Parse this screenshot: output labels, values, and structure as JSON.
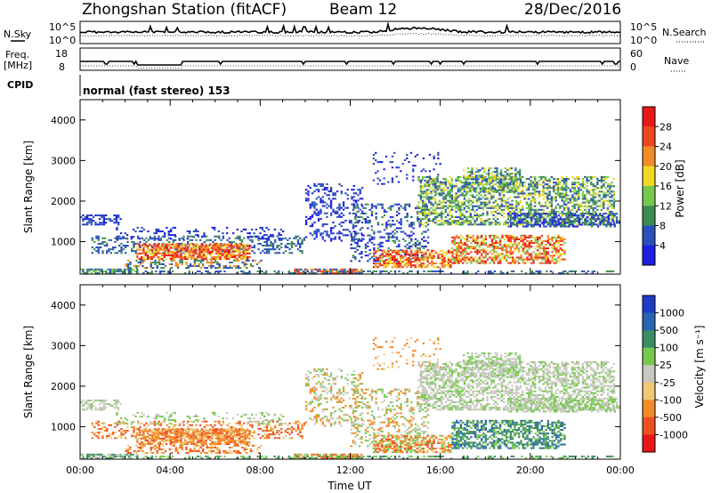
{
  "header": {
    "station_title": "Zhongshan Station (fitACF)",
    "beam": "Beam 12",
    "date": "28/Dec/2016"
  },
  "noise_panel": {
    "left_label": "N.Sky",
    "right_label": "N.Search",
    "left_ticks": [
      "10^5",
      "10^0"
    ],
    "right_ticks": [
      "10^5",
      "10^0"
    ]
  },
  "freq_panel": {
    "left_label_line1": "Freq.",
    "left_label_line2": "[MHz]",
    "left_ticks": [
      "18",
      "8"
    ],
    "right_label": "Nave",
    "right_ticks": [
      "60",
      "0"
    ]
  },
  "cpid": {
    "label": "CPID",
    "text": "normal (fast stereo) 153"
  },
  "chart_data": [
    {
      "type": "heatmap",
      "name": "power",
      "ylabel": "Slant Range [km]",
      "xlabel": "",
      "xlim": [
        0,
        24
      ],
      "ylim": [
        200,
        4500
      ],
      "y_ticks": [
        1000,
        2000,
        3000,
        4000
      ],
      "colorbar": {
        "label": "Power [dB]",
        "ticks": [
          "4",
          "8",
          "12",
          "16",
          "20",
          "24",
          "28"
        ],
        "colors": [
          "#1e1ee0",
          "#2850b8",
          "#3c8c50",
          "#78c850",
          "#f0d828",
          "#f08c28",
          "#f04620",
          "#e81818"
        ]
      }
    },
    {
      "type": "heatmap",
      "name": "velocity",
      "ylabel": "Slant Range [km]",
      "xlabel": "Time UT",
      "xlim": [
        0,
        24
      ],
      "ylim": [
        200,
        4500
      ],
      "y_ticks": [
        1000,
        2000,
        3000,
        4000
      ],
      "x_tick_labels": [
        "00:00",
        "04:00",
        "08:00",
        "12:00",
        "16:00",
        "20:00",
        "00:00"
      ],
      "colorbar": {
        "label": "Velocity [m s⁻¹]",
        "ticks": [
          "1000",
          "500",
          "100",
          "25",
          "-25",
          "-100",
          "-500",
          "-1000"
        ],
        "colors": [
          "#1e3cc8",
          "#2864b4",
          "#3c8c64",
          "#78c850",
          "#c8c8c0",
          "#f0c878",
          "#f08c28",
          "#f05020",
          "#e81818"
        ]
      }
    }
  ]
}
